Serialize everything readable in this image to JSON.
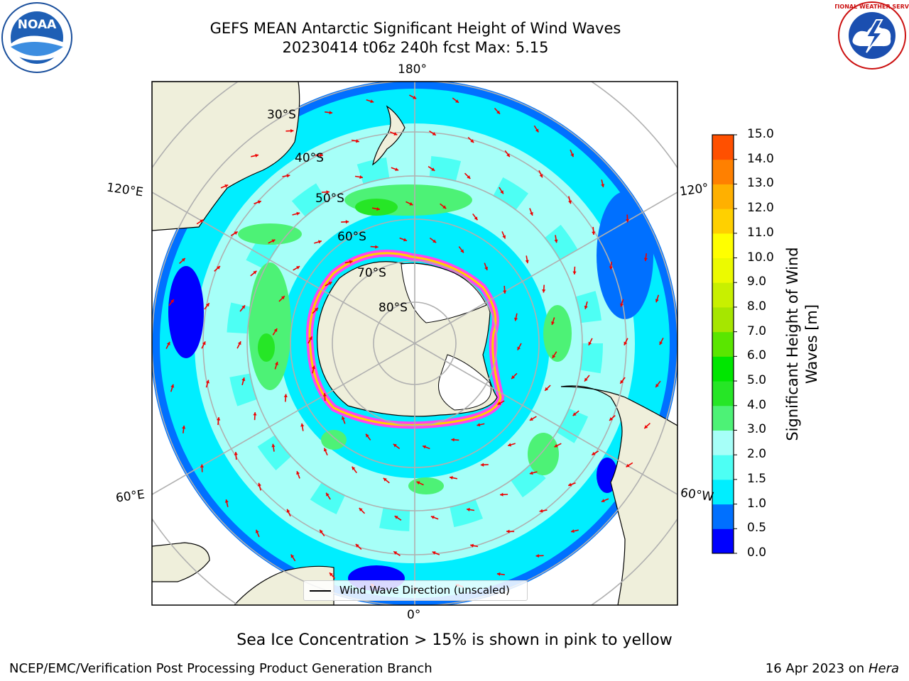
{
  "title": {
    "line1": "GEFS MEAN Antarctic Significant Height of Wind Waves",
    "line2": "20230414 t06z 240h fcst   Max: 5.15"
  },
  "map_labels": {
    "lon_180": "180°",
    "lon_0": "0°",
    "lon_120e": "120°E",
    "lon_60e": "60°E",
    "lon_120w": "120°",
    "lon_60w": "60°W",
    "lat_30": "30°S",
    "lat_40": "40°S",
    "lat_50": "50°S",
    "lat_60": "60°S",
    "lat_70": "70°S",
    "lat_80": "80°S"
  },
  "legend": {
    "label": "Wind Wave Direction (unscaled)"
  },
  "colorbar": {
    "label_line1": "Significant Height of Wind",
    "label_line2": "Waves [m]",
    "ticks": [
      "0.0",
      "0.5",
      "1.0",
      "1.5",
      "2.0",
      "3.0",
      "4.0",
      "5.0",
      "6.0",
      "7.0",
      "8.0",
      "9.0",
      "10.0",
      "11.0",
      "12.0",
      "13.0",
      "14.0",
      "15.0"
    ],
    "colors": [
      "#0000ff",
      "#0070ff",
      "#00eeff",
      "#4dfff4",
      "#a6fff8",
      "#4df276",
      "#26e626",
      "#00e600",
      "#5ae600",
      "#a6e600",
      "#c8f000",
      "#ecfa00",
      "#ffff00",
      "#ffd000",
      "#ffb000",
      "#ff8000",
      "#ff5000",
      "#ff1500",
      "#ff0000"
    ]
  },
  "caption": "Sea Ice Concentration > 15% is shown in pink to yellow",
  "footer": {
    "left": "NCEP/EMC/Verification Post Processing Product Generation Branch",
    "right_date": "16 Apr 2023 on ",
    "right_host": "Hera"
  },
  "logos": {
    "noaa_text": "NOAA",
    "nws_text": "NATIONAL WEATHER SERVICE"
  }
}
